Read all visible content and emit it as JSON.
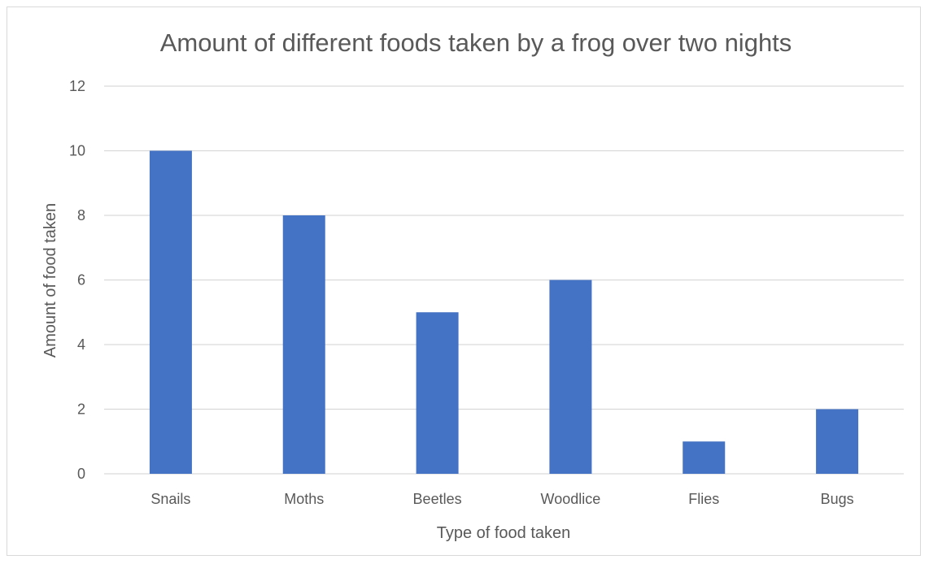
{
  "chart_data": {
    "type": "bar",
    "title": "Amount of different foods taken by a frog over two nights",
    "xlabel": "Type of food taken",
    "ylabel": "Amount of food taken",
    "categories": [
      "Snails",
      "Moths",
      "Beetles",
      "Woodlice",
      "Flies",
      "Bugs"
    ],
    "values": [
      10,
      8,
      5,
      6,
      1,
      2
    ],
    "ylim": [
      0,
      12
    ],
    "yticks": [
      "0",
      "2",
      "4",
      "6",
      "8",
      "10",
      "12"
    ],
    "grid": true,
    "legend": "none",
    "colors": {
      "bar": "#4472c4",
      "grid": "#d9d9d9",
      "text": "#595959"
    }
  }
}
